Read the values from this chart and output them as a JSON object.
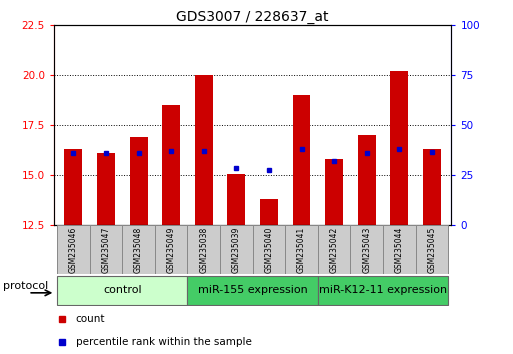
{
  "title": "GDS3007 / 228637_at",
  "samples": [
    "GSM235046",
    "GSM235047",
    "GSM235048",
    "GSM235049",
    "GSM235038",
    "GSM235039",
    "GSM235040",
    "GSM235041",
    "GSM235042",
    "GSM235043",
    "GSM235044",
    "GSM235045"
  ],
  "red_values": [
    16.3,
    16.1,
    16.9,
    18.5,
    20.0,
    15.05,
    13.8,
    19.0,
    15.8,
    17.0,
    20.2,
    16.3
  ],
  "blue_values": [
    16.1,
    16.1,
    16.1,
    16.2,
    16.2,
    15.35,
    15.25,
    16.3,
    15.7,
    16.1,
    16.3,
    16.15
  ],
  "ylim": [
    12.5,
    22.5
  ],
  "yticks": [
    12.5,
    15.0,
    17.5,
    20.0,
    22.5
  ],
  "right_yticks": [
    0,
    25,
    50,
    75,
    100
  ],
  "right_ylim": [
    0,
    100
  ],
  "bar_bottom": 12.5,
  "bar_color": "#cc0000",
  "blue_color": "#0000cc",
  "group_data": [
    {
      "start": 0,
      "end": 3,
      "label": "control",
      "color": "#ccffcc"
    },
    {
      "start": 4,
      "end": 7,
      "label": "miR-155 expression",
      "color": "#44cc66"
    },
    {
      "start": 8,
      "end": 11,
      "label": "miR-K12-11 expression",
      "color": "#44cc66"
    }
  ],
  "protocol_label": "protocol",
  "legend_count": "count",
  "legend_percentile": "percentile rank within the sample",
  "title_fontsize": 10,
  "tick_fontsize": 7.5,
  "group_fontsize": 8,
  "label_fontsize": 5.5,
  "legend_fontsize": 7.5
}
